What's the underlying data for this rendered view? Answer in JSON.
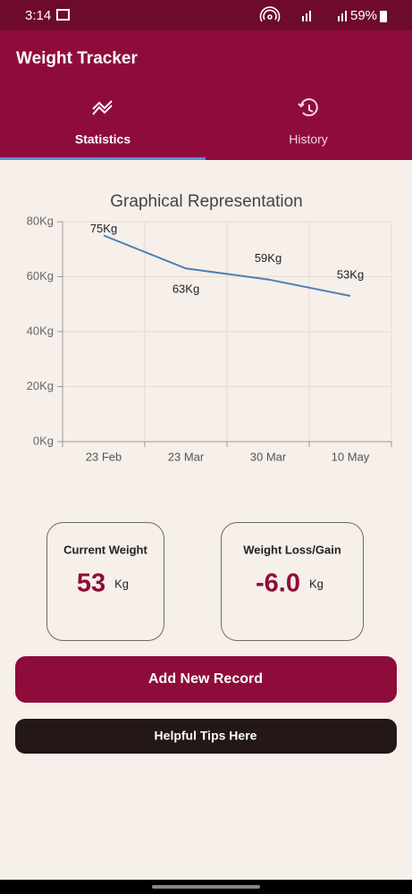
{
  "status_bar": {
    "time": "3:14",
    "battery": "59%"
  },
  "app_bar": {
    "title": "Weight Tracker"
  },
  "tabs": [
    {
      "label": "Statistics",
      "selected": true
    },
    {
      "label": "History",
      "selected": false
    }
  ],
  "chart_data": {
    "type": "line",
    "title": "Graphical Representation",
    "categories": [
      "23 Feb",
      "23 Mar",
      "30 Mar",
      "10 May"
    ],
    "values": [
      75,
      63,
      59,
      53
    ],
    "value_labels": [
      "75Kg",
      "63Kg",
      "59Kg",
      "53Kg"
    ],
    "color": "#4f7fb3",
    "ylim": [
      0,
      80
    ],
    "yticks": [
      {
        "value": 0,
        "label": "0Kg"
      },
      {
        "value": 20,
        "label": "20Kg"
      },
      {
        "value": 40,
        "label": "40Kg"
      },
      {
        "value": 60,
        "label": "60Kg"
      },
      {
        "value": 80,
        "label": "80Kg"
      }
    ],
    "grid": true
  },
  "cards": [
    {
      "title": "Current Weight",
      "value": "53",
      "unit": "Kg"
    },
    {
      "title": "Weight Loss/Gain",
      "value": "-6.0",
      "unit": "Kg"
    }
  ],
  "buttons": [
    {
      "label": "Add New Record"
    },
    {
      "label": "Helpful Tips Here"
    }
  ]
}
